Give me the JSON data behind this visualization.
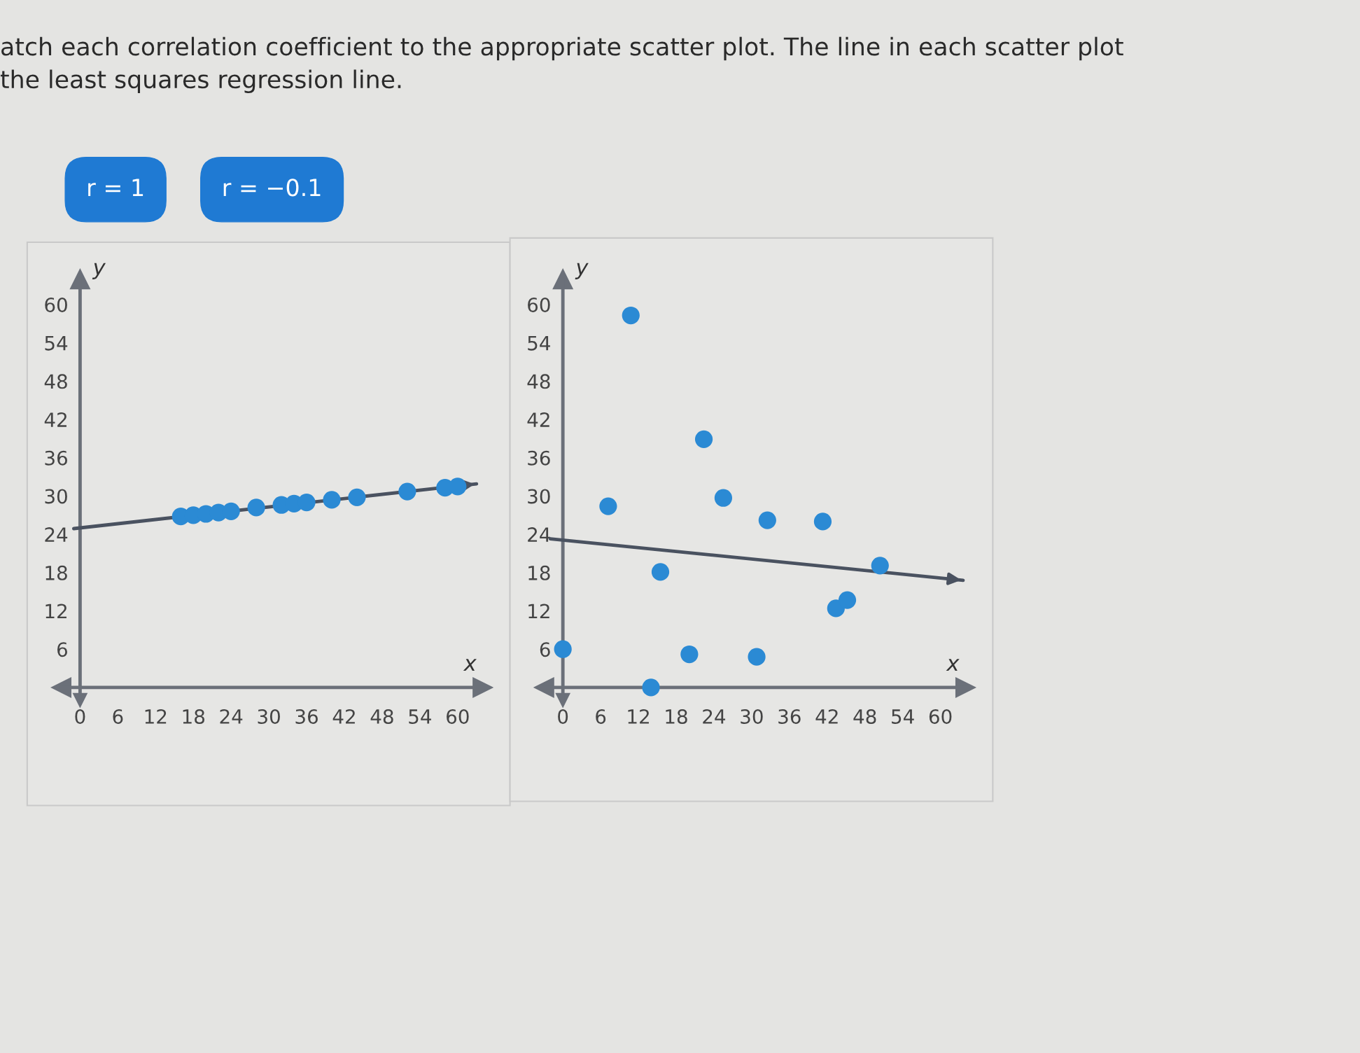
{
  "chart_data": [
    {
      "type": "scatter",
      "title": "atch each correlation coefficient to the appropriate scatter plot. The line in each scatter plot\nthe least squares regression line.",
      "annotations": [
        "r = 1",
        "r = −0.1"
      ],
      "xlabel": "x",
      "ylabel": "y",
      "xlim": [
        -3,
        64
      ],
      "ylim": [
        -2,
        64
      ],
      "xticks": [
        0,
        6,
        12,
        18,
        24,
        30,
        36,
        42,
        48,
        54,
        60
      ],
      "yticks": [
        6,
        12,
        18,
        24,
        30,
        36,
        42,
        48,
        54,
        60
      ],
      "grid": false,
      "series": [
        {
          "marker": "circle",
          "color": "#2b8ad4",
          "x": [
            16,
            18,
            20,
            22,
            24,
            28,
            32,
            34,
            36,
            40,
            44,
            52,
            58,
            60
          ],
          "values": [
            26.8,
            27.0,
            27.2,
            27.4,
            27.6,
            28.2,
            28.6,
            28.8,
            29.0,
            29.4,
            29.8,
            30.7,
            31.3,
            31.5
          ]
        },
        {
          "type": "line",
          "marker": "none",
          "color": "#4a5260",
          "x": [
            -1,
            63
          ],
          "values": [
            24.9,
            31.9
          ]
        }
      ]
    },
    {
      "type": "scatter",
      "xlabel": "x",
      "ylabel": "y",
      "xlim": [
        -3,
        64
      ],
      "ylim": [
        -2,
        64
      ],
      "xticks": [
        0,
        6,
        12,
        18,
        24,
        30,
        36,
        42,
        48,
        54,
        60
      ],
      "yticks": [
        6,
        12,
        18,
        24,
        30,
        36,
        42,
        48,
        54,
        60
      ],
      "grid": false,
      "series": [
        {
          "marker": "circle",
          "color": "#2b8ad4",
          "x": [
            0,
            7.2,
            10.8,
            14,
            15.5,
            20.1,
            22.4,
            25.5,
            30.8,
            32.5,
            41.3,
            43.4,
            45.2,
            50.4
          ],
          "values": [
            6,
            28.4,
            58.3,
            0,
            18.1,
            5.2,
            38.9,
            29.7,
            4.8,
            26.2,
            26.0,
            12.4,
            13.7,
            19.1
          ]
        },
        {
          "type": "line",
          "marker": "none",
          "color": "#4a5260",
          "x": [
            -2,
            63.6
          ],
          "values": [
            23.3,
            16.8
          ]
        }
      ]
    }
  ]
}
